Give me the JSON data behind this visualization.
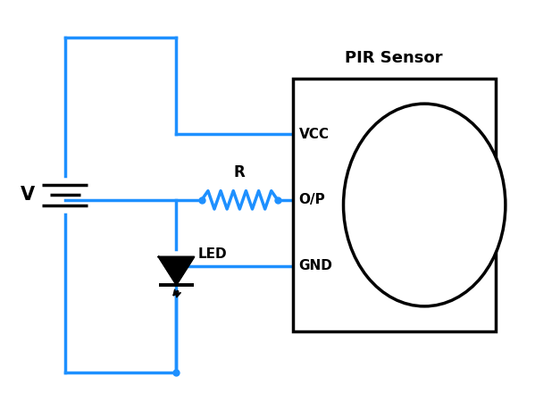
{
  "wire_color": "#1E90FF",
  "wire_lw": 2.5,
  "component_color": "#000000",
  "bg_color": "#FFFFFF",
  "fig_width": 5.99,
  "fig_height": 4.59,
  "pir_label": "PIR Sensor",
  "pir_pins": [
    "VCC",
    "O/P",
    "GND"
  ],
  "battery_label": "V",
  "resistor_label": "R",
  "led_label": "LED"
}
